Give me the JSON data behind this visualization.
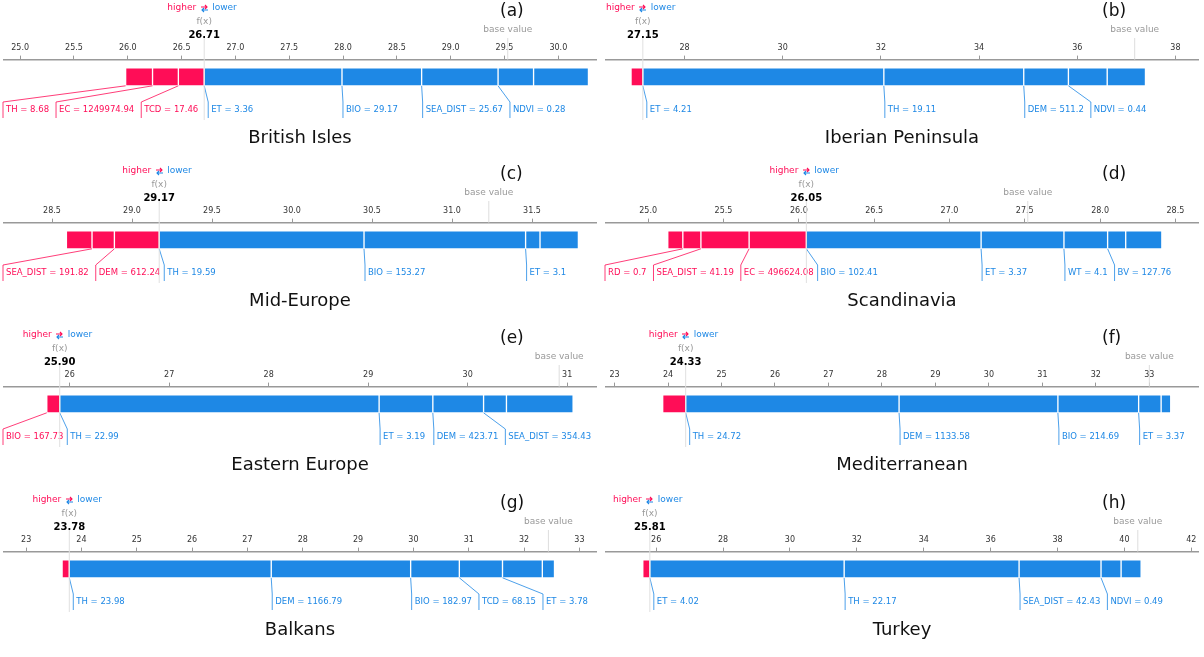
{
  "chart_data": [
    {
      "type": "bar",
      "orientation": "horizontal",
      "title": "British Isles",
      "subtitle": "(a)",
      "categories": [
        null
      ],
      "xlim": [
        24.85,
        30.35
      ],
      "xticks": [
        {
          "value": 25,
          "label": "25.0"
        },
        25.5,
        {
          "value": 26,
          "label": "26.0"
        },
        26.5,
        {
          "value": 27,
          "label": "27.0"
        },
        27.5,
        {
          "value": 28,
          "label": "28.0"
        },
        28.5,
        {
          "value": 29,
          "label": "29.0"
        },
        29.5,
        {
          "value": 30,
          "label": "30.0"
        }
      ],
      "series": [
        {
          "name": "TH = 8.68",
          "color": "#ff0d57",
          "base": [
            25.98
          ],
          "values": [
            0.25
          ]
        },
        {
          "name": "EC = 1249974.94",
          "color": "#ff0d57",
          "base": [
            26.23
          ],
          "values": [
            0.24
          ]
        },
        {
          "name": "TCD = 17.46",
          "color": "#ff0d57",
          "base": [
            26.47
          ],
          "values": [
            0.24
          ]
        },
        {
          "name": "ET = 3.36",
          "color": "#1e88e5",
          "base": [
            26.71
          ],
          "values": [
            1.28
          ]
        },
        {
          "name": "BIO = 29.17",
          "color": "#1e88e5",
          "base": [
            27.99
          ],
          "values": [
            0.74
          ]
        },
        {
          "name": "SEA_DIST = 25.67",
          "color": "#1e88e5",
          "base": [
            28.73
          ],
          "values": [
            0.71
          ]
        },
        {
          "name": "NDVI = 0.28",
          "color": "#1e88e5",
          "base": [
            29.44
          ],
          "values": [
            0.33
          ]
        },
        {
          "color": "#1e88e5",
          "base": [
            29.77
          ],
          "values": [
            0.51
          ]
        }
      ],
      "ref_lines": [
        {
          "axis": "x",
          "value": 26.71,
          "label": "f(x)"
        },
        {
          "axis": "x",
          "value": 29.53,
          "label": "base value"
        }
      ],
      "annotations": [
        "higher",
        "lower",
        {
          "text": "26.71",
          "x": 26.71
        }
      ]
    },
    {
      "type": "bar",
      "orientation": "horizontal",
      "title": "Iberian Peninsula",
      "subtitle": "(b)",
      "categories": [
        null
      ],
      "xlim": [
        26.4,
        38.46
      ],
      "xticks": [
        28,
        30,
        32,
        34,
        36,
        38
      ],
      "series": [
        {
          "color": "#ff0d57",
          "base": [
            26.91
          ],
          "values": [
            0.24
          ]
        },
        {
          "name": "ET = 4.21",
          "color": "#1e88e5",
          "base": [
            27.15
          ],
          "values": [
            4.91
          ]
        },
        {
          "name": "TH = 19.11",
          "color": "#1e88e5",
          "base": [
            32.06
          ],
          "values": [
            2.85
          ]
        },
        {
          "name": "DEM = 511.2",
          "color": "#1e88e5",
          "base": [
            34.91
          ],
          "values": [
            0.91
          ]
        },
        {
          "name": "NDVI = 0.44",
          "color": "#1e88e5",
          "base": [
            35.82
          ],
          "values": [
            0.79
          ]
        },
        {
          "color": "#1e88e5",
          "base": [
            36.61
          ],
          "values": [
            0.78
          ]
        }
      ],
      "ref_lines": [
        {
          "axis": "x",
          "value": 27.15,
          "label": "f(x)"
        },
        {
          "axis": "x",
          "value": 37.17,
          "label": "base value"
        }
      ],
      "annotations": [
        "higher",
        "lower",
        {
          "text": "27.15",
          "x": 27.15
        }
      ]
    },
    {
      "type": "bar",
      "orientation": "horizontal",
      "title": "Mid-Europe",
      "subtitle": "(c)",
      "categories": [
        null
      ],
      "xlim": [
        28.2,
        31.9
      ],
      "xticks": [
        28.5,
        {
          "value": 29,
          "label": "29.0"
        },
        29.5,
        {
          "value": 30,
          "label": "30.0"
        },
        30.5,
        {
          "value": 31,
          "label": "31.0"
        },
        31.5
      ],
      "series": [
        {
          "color": "#ff0d57",
          "base": [
            28.59
          ],
          "values": [
            0.16
          ]
        },
        {
          "name": "SEA_DIST = 191.82",
          "color": "#ff0d57",
          "base": [
            28.75
          ],
          "values": [
            0.14
          ]
        },
        {
          "name": "DEM = 612.24",
          "color": "#ff0d57",
          "base": [
            28.89
          ],
          "values": [
            0.28
          ]
        },
        {
          "name": "TH = 19.59",
          "color": "#1e88e5",
          "base": [
            29.17
          ],
          "values": [
            1.28
          ]
        },
        {
          "name": "BIO = 153.27",
          "color": "#1e88e5",
          "base": [
            30.45
          ],
          "values": [
            1.01
          ]
        },
        {
          "name": "ET = 3.1",
          "color": "#1e88e5",
          "base": [
            31.46
          ],
          "values": [
            0.09
          ]
        },
        {
          "color": "#1e88e5",
          "base": [
            31.55
          ],
          "values": [
            0.24
          ]
        }
      ],
      "ref_lines": [
        {
          "axis": "x",
          "value": 29.17,
          "label": "f(x)"
        },
        {
          "axis": "x",
          "value": 31.23,
          "label": "base value"
        }
      ],
      "annotations": [
        "higher",
        "lower",
        {
          "text": "29.17",
          "x": 29.17
        }
      ]
    },
    {
      "type": "bar",
      "orientation": "horizontal",
      "title": "Scandinavia",
      "subtitle": "(d)",
      "categories": [
        null
      ],
      "xlim": [
        24.72,
        28.65
      ],
      "xticks": [
        {
          "value": 25,
          "label": "25.0"
        },
        25.5,
        {
          "value": 26,
          "label": "26.0"
        },
        26.5,
        {
          "value": 27,
          "label": "27.0"
        },
        27.5,
        {
          "value": 28,
          "label": "28.0"
        },
        28.5
      ],
      "series": [
        {
          "color": "#ff0d57",
          "base": [
            25.13
          ],
          "values": [
            0.1
          ]
        },
        {
          "name": "RD = 0.7",
          "color": "#ff0d57",
          "base": [
            25.23
          ],
          "values": [
            0.12
          ]
        },
        {
          "name": "SEA_DIST = 41.19",
          "color": "#ff0d57",
          "base": [
            25.35
          ],
          "values": [
            0.32
          ]
        },
        {
          "name": "EC = 496624.08",
          "color": "#ff0d57",
          "base": [
            25.67
          ],
          "values": [
            0.38
          ]
        },
        {
          "name": "BIO = 102.41",
          "color": "#1e88e5",
          "base": [
            26.05
          ],
          "values": [
            1.16
          ]
        },
        {
          "name": "ET = 3.37",
          "color": "#1e88e5",
          "base": [
            27.21
          ],
          "values": [
            0.55
          ]
        },
        {
          "name": "WT = 4.1",
          "color": "#1e88e5",
          "base": [
            27.76
          ],
          "values": [
            0.29
          ]
        },
        {
          "name": "BV = 127.76",
          "color": "#1e88e5",
          "base": [
            28.05
          ],
          "values": [
            0.12
          ]
        },
        {
          "color": "#1e88e5",
          "base": [
            28.17
          ],
          "values": [
            0.24
          ]
        }
      ],
      "ref_lines": [
        {
          "axis": "x",
          "value": 26.05,
          "label": "f(x)"
        },
        {
          "axis": "x",
          "value": 27.52,
          "label": "base value"
        }
      ],
      "annotations": [
        "higher",
        "lower",
        {
          "text": "26.05",
          "x": 26.05
        }
      ]
    },
    {
      "type": "bar",
      "orientation": "horizontal",
      "title": "Eastern Europe",
      "subtitle": "(e)",
      "categories": [
        null
      ],
      "xlim": [
        25.34,
        31.29
      ],
      "xticks": [
        26,
        27,
        28,
        29,
        30,
        31
      ],
      "series": [
        {
          "name": "BIO = 167.73",
          "color": "#ff0d57",
          "base": [
            25.77
          ],
          "values": [
            0.13
          ]
        },
        {
          "name": "TH = 22.99",
          "color": "#1e88e5",
          "base": [
            25.9
          ],
          "values": [
            3.21
          ]
        },
        {
          "name": "ET = 3.19",
          "color": "#1e88e5",
          "base": [
            29.11
          ],
          "values": [
            0.54
          ]
        },
        {
          "name": "DEM = 423.71",
          "color": "#1e88e5",
          "base": [
            29.65
          ],
          "values": [
            0.51
          ]
        },
        {
          "name": "SEA_DIST = 354.43",
          "color": "#1e88e5",
          "base": [
            30.16
          ],
          "values": [
            0.23
          ]
        },
        {
          "color": "#1e88e5",
          "base": [
            30.39
          ],
          "values": [
            0.67
          ]
        }
      ],
      "ref_lines": [
        {
          "axis": "x",
          "value": 25.9,
          "label": "f(x)"
        },
        {
          "axis": "x",
          "value": 30.92,
          "label": "base value"
        }
      ],
      "annotations": [
        "higher",
        "lower",
        {
          "text": "25.90",
          "x": 25.9
        }
      ]
    },
    {
      "type": "bar",
      "orientation": "horizontal",
      "title": "Mediterranean",
      "subtitle": "(f)",
      "categories": [
        null
      ],
      "xlim": [
        22.84,
        33.91
      ],
      "xticks": [
        23,
        24,
        25,
        26,
        27,
        28,
        29,
        30,
        31,
        32,
        33
      ],
      "series": [
        {
          "color": "#ff0d57",
          "base": [
            23.9
          ],
          "values": [
            0.43
          ]
        },
        {
          "name": "TH = 24.72",
          "color": "#1e88e5",
          "base": [
            24.33
          ],
          "values": [
            3.99
          ]
        },
        {
          "name": "DEM = 1133.58",
          "color": "#1e88e5",
          "base": [
            28.32
          ],
          "values": [
            2.97
          ]
        },
        {
          "name": "BIO = 214.69",
          "color": "#1e88e5",
          "base": [
            31.29
          ],
          "values": [
            1.51
          ]
        },
        {
          "name": "ET = 3.37",
          "color": "#1e88e5",
          "base": [
            32.8
          ],
          "values": [
            0.42
          ]
        },
        {
          "color": "#1e88e5",
          "base": [
            33.22
          ],
          "values": [
            0.18
          ]
        }
      ],
      "ref_lines": [
        {
          "axis": "x",
          "value": 24.33,
          "label": "f(x)"
        },
        {
          "axis": "x",
          "value": 33.0,
          "label": "base value"
        }
      ],
      "annotations": [
        "higher",
        "lower",
        {
          "text": "24.33",
          "x": 24.33
        }
      ]
    },
    {
      "type": "bar",
      "orientation": "horizontal",
      "title": "Balkans",
      "subtitle": "(g)",
      "categories": [
        null
      ],
      "xlim": [
        22.6,
        33.3
      ],
      "xticks": [
        23,
        24,
        25,
        26,
        27,
        28,
        29,
        30,
        31,
        32,
        33
      ],
      "series": [
        {
          "color": "#ff0d57",
          "base": [
            23.65
          ],
          "values": [
            0.13
          ]
        },
        {
          "name": "TH = 23.98",
          "color": "#1e88e5",
          "base": [
            23.78
          ],
          "values": [
            3.65
          ]
        },
        {
          "name": "DEM = 1166.79",
          "color": "#1e88e5",
          "base": [
            27.43
          ],
          "values": [
            2.52
          ]
        },
        {
          "name": "BIO = 182.97",
          "color": "#1e88e5",
          "base": [
            29.95
          ],
          "values": [
            0.88
          ]
        },
        {
          "name": "TCD = 68.15",
          "color": "#1e88e5",
          "base": [
            30.83
          ],
          "values": [
            0.78
          ]
        },
        {
          "name": "ET = 3.78",
          "color": "#1e88e5",
          "base": [
            31.61
          ],
          "values": [
            0.72
          ]
        },
        {
          "color": "#1e88e5",
          "base": [
            32.33
          ],
          "values": [
            0.22
          ]
        }
      ],
      "ref_lines": [
        {
          "axis": "x",
          "value": 23.78,
          "label": "f(x)"
        },
        {
          "axis": "x",
          "value": 32.44,
          "label": "base value"
        }
      ],
      "annotations": [
        "higher",
        "lower",
        {
          "text": "23.78",
          "x": 23.78
        }
      ]
    },
    {
      "type": "bar",
      "orientation": "horizontal",
      "title": "Turkey",
      "subtitle": "(h)",
      "categories": [
        null
      ],
      "xlim": [
        24.5,
        42.2
      ],
      "xticks": [
        26,
        28,
        30,
        32,
        34,
        36,
        38,
        40,
        42
      ],
      "series": [
        {
          "color": "#ff0d57",
          "base": [
            25.6
          ],
          "values": [
            0.21
          ]
        },
        {
          "name": "ET = 4.02",
          "color": "#1e88e5",
          "base": [
            25.81
          ],
          "values": [
            5.81
          ]
        },
        {
          "name": "TH = 22.17",
          "color": "#1e88e5",
          "base": [
            31.62
          ],
          "values": [
            5.23
          ]
        },
        {
          "name": "SEA_DIST = 42.43",
          "color": "#1e88e5",
          "base": [
            36.85
          ],
          "values": [
            2.45
          ]
        },
        {
          "name": "NDVI = 0.49",
          "color": "#1e88e5",
          "base": [
            39.3
          ],
          "values": [
            0.6
          ]
        },
        {
          "color": "#1e88e5",
          "base": [
            39.9
          ],
          "values": [
            0.6
          ]
        }
      ],
      "ref_lines": [
        {
          "axis": "x",
          "value": 25.81,
          "label": "f(x)"
        },
        {
          "axis": "x",
          "value": 40.4,
          "label": "base value"
        }
      ],
      "annotations": [
        "higher",
        "lower",
        {
          "text": "25.81",
          "x": 25.81
        }
      ]
    }
  ]
}
